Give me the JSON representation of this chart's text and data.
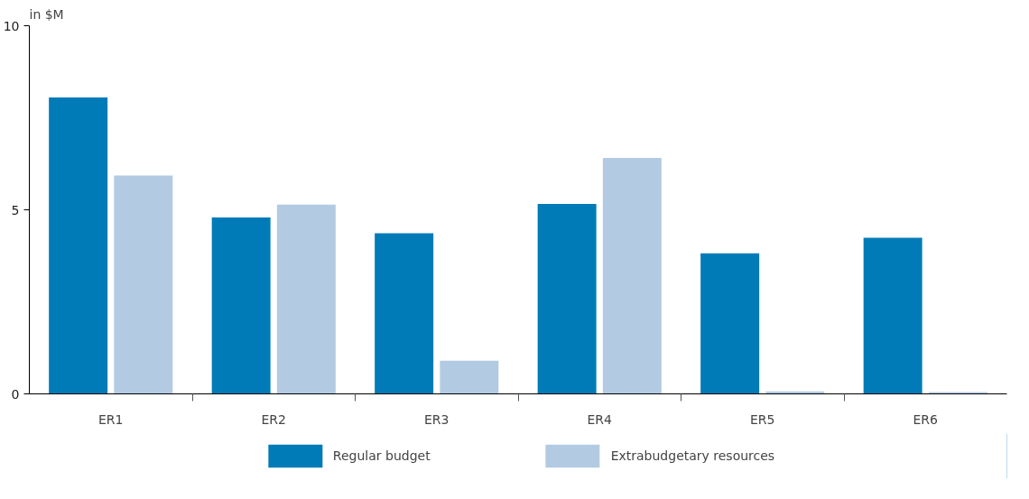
{
  "chart_data": {
    "type": "bar",
    "ylabel": "in $M",
    "categories": [
      "ER1",
      "ER2",
      "ER3",
      "ER4",
      "ER5",
      "ER6"
    ],
    "series": [
      {
        "name": "Regular budget",
        "color": "#007bb8",
        "values": [
          8.05,
          4.79,
          4.36,
          5.16,
          3.82,
          4.24
        ]
      },
      {
        "name": "Extrabudgetary resources",
        "color": "#b3cae3",
        "values": [
          5.93,
          5.14,
          0.9,
          6.41,
          0.07,
          0.05
        ]
      }
    ],
    "ylim": [
      0,
      10
    ],
    "yticks": [
      0,
      5,
      10
    ],
    "grid": false,
    "legend": "bottom"
  }
}
